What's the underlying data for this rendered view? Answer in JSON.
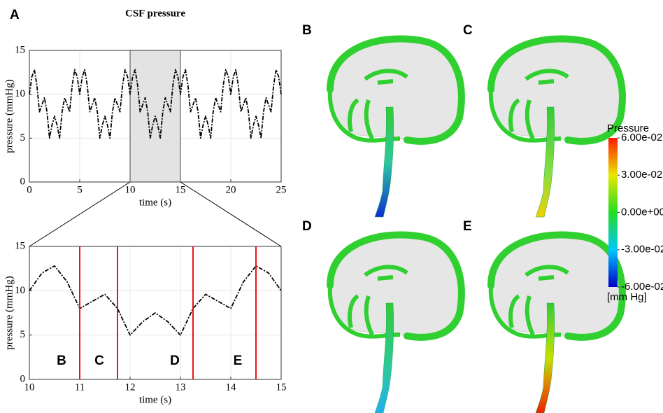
{
  "panel_label": "A",
  "chart_data": [
    {
      "type": "line",
      "title": "CSF pressure",
      "xlabel": "time (s)",
      "ylabel": "pressure (mmHg)",
      "x": [
        0,
        0.25,
        0.5,
        0.75,
        1,
        1.25,
        1.5,
        1.75,
        2,
        2.25,
        2.5,
        2.75,
        3,
        3.25,
        3.5,
        3.75,
        4,
        4.25,
        4.5,
        4.75,
        5,
        5.25,
        5.5,
        5.75,
        6,
        6.25,
        6.5,
        6.75,
        7,
        7.25,
        7.5,
        7.75,
        8,
        8.25,
        8.5,
        8.75,
        9,
        9.25,
        9.5,
        9.75,
        10,
        10.25,
        10.5,
        10.75,
        11,
        11.25,
        11.5,
        11.75,
        12,
        12.25,
        12.5,
        12.75,
        13,
        13.25,
        13.5,
        13.75,
        14,
        14.25,
        14.5,
        14.75,
        15,
        15.25,
        15.5,
        15.75,
        16,
        16.25,
        16.5,
        16.75,
        17,
        17.25,
        17.5,
        17.75,
        18,
        18.25,
        18.5,
        18.75,
        19,
        19.25,
        19.5,
        19.75,
        20,
        20.25,
        20.5,
        20.75,
        21,
        21.25,
        21.5,
        21.75,
        22,
        22.25,
        22.5,
        22.75,
        23,
        23.25,
        23.5,
        23.75,
        24,
        24.25,
        24.5,
        24.75,
        25
      ],
      "values": [
        10,
        12,
        12.8,
        11,
        8,
        8.8,
        9.6,
        8,
        5,
        6.5,
        7.5,
        6.5,
        5,
        8,
        9.6,
        8.8,
        8,
        11,
        12.8,
        12,
        10,
        12,
        12.8,
        11,
        8,
        8.8,
        9.6,
        8,
        5,
        6.5,
        7.5,
        6.5,
        5,
        8,
        9.6,
        8.8,
        8,
        11,
        12.8,
        12,
        10,
        12,
        12.8,
        11,
        8,
        8.8,
        9.6,
        8,
        5,
        6.5,
        7.5,
        6.5,
        5,
        8,
        9.6,
        8.8,
        8,
        11,
        12.8,
        12,
        10,
        12,
        12.8,
        11,
        8,
        8.8,
        9.6,
        8,
        5,
        6.5,
        7.5,
        6.5,
        5,
        8,
        9.6,
        8.8,
        8,
        11,
        12.8,
        12,
        10,
        12,
        12.8,
        11,
        8,
        8.8,
        9.6,
        8,
        5,
        6.5,
        7.5,
        6.5,
        5,
        8,
        9.6,
        8.8,
        8,
        11,
        12.8,
        12,
        10
      ],
      "color": "#000000",
      "highlight": [
        10,
        15
      ],
      "xlim": [
        0,
        25
      ],
      "xticks": [
        0,
        5,
        10,
        15,
        20,
        25
      ],
      "ylim": [
        0,
        15
      ],
      "yticks": [
        0,
        5,
        10,
        15
      ],
      "grid": true
    },
    {
      "type": "line",
      "xlabel": "time (s)",
      "ylabel": "pressure (mmHg)",
      "x": [
        10,
        10.25,
        10.5,
        10.75,
        11,
        11.25,
        11.5,
        11.75,
        12,
        12.25,
        12.5,
        12.75,
        13,
        13.25,
        13.5,
        13.75,
        14,
        14.25,
        14.5,
        14.75,
        15
      ],
      "values": [
        10,
        12,
        12.8,
        11,
        8,
        8.8,
        9.6,
        8,
        5,
        6.5,
        7.5,
        6.5,
        5,
        8,
        9.6,
        8.8,
        8,
        11,
        12.8,
        12,
        10
      ],
      "color": "#000000",
      "vlines": [
        {
          "x": 11,
          "label": "B"
        },
        {
          "x": 11.75,
          "label": "C"
        },
        {
          "x": 13.25,
          "label": "D"
        },
        {
          "x": 14.5,
          "label": "E"
        }
      ],
      "vline_color": "#e8141c",
      "xlim": [
        10,
        15
      ],
      "xticks": [
        10,
        11,
        12,
        13,
        14,
        15
      ],
      "ylim": [
        0,
        15
      ],
      "yticks": [
        0,
        5,
        10,
        15
      ],
      "grid": true
    }
  ],
  "brain_panels": [
    "B",
    "C",
    "D",
    "E"
  ],
  "colorbar": {
    "title": "Pressure",
    "unit": "[mm Hg]",
    "lim": [
      -0.06,
      0.06
    ],
    "ticks": [
      {
        "value": 0.06,
        "label": "6.00e-02"
      },
      {
        "value": 0.03,
        "label": "3.00e-02"
      },
      {
        "value": 0,
        "label": "0.00e+00"
      },
      {
        "value": -0.03,
        "label": "-3.00e-02"
      },
      {
        "value": -0.06,
        "label": "-6.00e-02"
      }
    ]
  }
}
